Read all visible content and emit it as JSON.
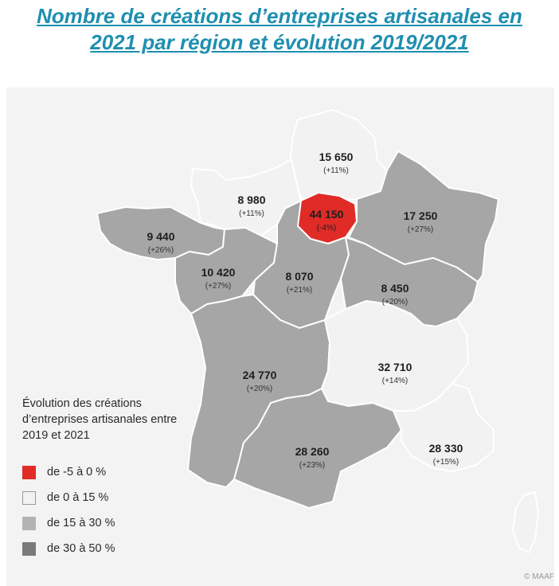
{
  "title": {
    "line1": "Nombre de créations d’entreprises artisanales en",
    "line2": "2021 par région et évolution 2019/2021"
  },
  "colors": {
    "red": "#e02b27",
    "light": "#f2f2f2",
    "mid": "#a6a6a6",
    "dark": "#8a8a8a",
    "title": "#1f8fb0"
  },
  "regions": [
    {
      "id": "hauts-de-france",
      "value": "15 650",
      "change": "(+11%)",
      "class": "light"
    },
    {
      "id": "normandie",
      "value": "8 980",
      "change": "(+11%)",
      "class": "light"
    },
    {
      "id": "ile-de-france",
      "value": "44 150",
      "change": "(-4%)",
      "class": "red"
    },
    {
      "id": "grand-est",
      "value": "17 250",
      "change": "(+27%)",
      "class": "mid"
    },
    {
      "id": "bretagne",
      "value": "9 440",
      "change": "(+26%)",
      "class": "mid"
    },
    {
      "id": "pays-de-la-loire",
      "value": "10 420",
      "change": "(+27%)",
      "class": "mid"
    },
    {
      "id": "centre-val-de-loire",
      "value": "8 070",
      "change": "(+21%)",
      "class": "mid"
    },
    {
      "id": "bourgogne-franche-comte",
      "value": "8 450",
      "change": "(+20%)",
      "class": "mid"
    },
    {
      "id": "nouvelle-aquitaine",
      "value": "24 770",
      "change": "(+20%)",
      "class": "mid"
    },
    {
      "id": "auvergne-rhone-alpes",
      "value": "32 710",
      "change": "(+14%)",
      "class": "light"
    },
    {
      "id": "occitanie",
      "value": "28 260",
      "change": "(+23%)",
      "class": "mid"
    },
    {
      "id": "paca",
      "value": "28 330",
      "change": "(+15%)",
      "class": "light"
    },
    {
      "id": "corse",
      "value": "",
      "change": "",
      "class": "light"
    }
  ],
  "legend": {
    "title": "Évolution des créations d’entreprises artisanales entre 2019 et 2021",
    "items": [
      {
        "label": "de -5 à 0 %",
        "color": "#e02b27"
      },
      {
        "label": "de 0 à 15 %",
        "color": "#f2f2f2"
      },
      {
        "label": "de 15 à 30 %",
        "color": "#b3b3b3"
      },
      {
        "label": "de 30 à 50 %",
        "color": "#7a7a7a"
      }
    ]
  },
  "credit": "© MAAF"
}
